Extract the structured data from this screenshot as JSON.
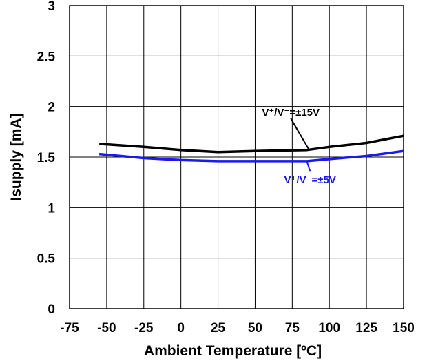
{
  "chart_data": {
    "type": "line",
    "title": "",
    "xlabel": "Ambient Temperature [ºC]",
    "ylabel": "Isupply  [mA]",
    "xlim": [
      -75,
      150
    ],
    "ylim": [
      0,
      3
    ],
    "xticks": [
      -75,
      -50,
      -25,
      0,
      25,
      50,
      75,
      100,
      125,
      150
    ],
    "yticks": [
      0,
      0.5,
      1,
      1.5,
      2,
      2.5,
      3
    ],
    "xtick_labels": [
      "-75",
      "-50",
      "-25",
      "0",
      "25",
      "50",
      "75",
      "100",
      "125",
      "150"
    ],
    "ytick_labels": [
      "0",
      "0.5",
      "1",
      "1.5",
      "2",
      "2.5",
      "3"
    ],
    "grid": true,
    "series": [
      {
        "name": "V⁺/V⁻=±15V",
        "color": "#000000",
        "x": [
          -55,
          -25,
          0,
          25,
          50,
          85,
          100,
          125,
          150
        ],
        "y": [
          1.63,
          1.6,
          1.57,
          1.55,
          1.56,
          1.57,
          1.6,
          1.64,
          1.71
        ]
      },
      {
        "name": "V⁺/V⁻=±5V",
        "color": "#1a1aee",
        "x": [
          -55,
          -25,
          0,
          25,
          50,
          85,
          100,
          125,
          150
        ],
        "y": [
          1.53,
          1.49,
          1.47,
          1.46,
          1.46,
          1.46,
          1.48,
          1.51,
          1.56
        ]
      }
    ],
    "annotations": [
      {
        "text": "V⁺/V⁻=±15V",
        "color": "#000000",
        "series": 0,
        "point_x": 86,
        "point_y": 1.58,
        "label_x": 74,
        "label_y": 1.91
      },
      {
        "text": "V⁺/V⁻=±5V",
        "color": "#1a1aee",
        "series": 1,
        "point_x": 85,
        "point_y": 1.45,
        "label_x": 87,
        "label_y": 1.24
      }
    ]
  }
}
